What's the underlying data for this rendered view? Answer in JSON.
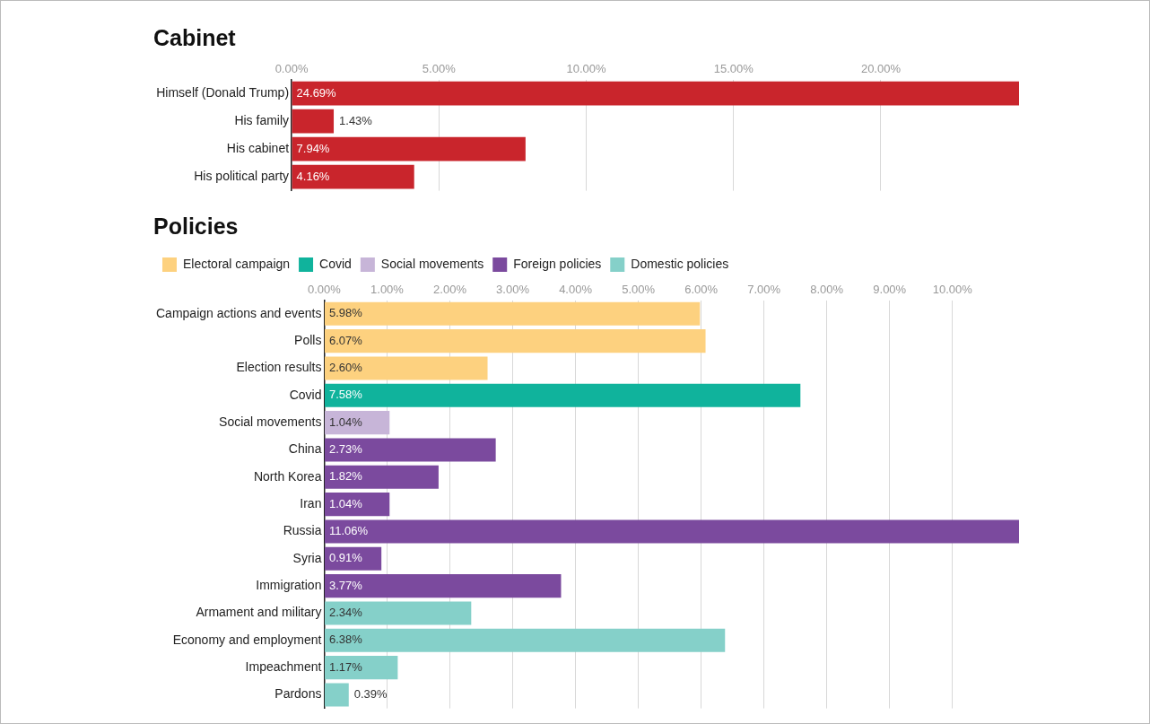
{
  "chart_data": [
    {
      "type": "bar",
      "orientation": "horizontal",
      "title": "Cabinet",
      "categories": [
        "Himself (Donald Trump)",
        "His family",
        "His cabinet",
        "His political party"
      ],
      "values": [
        24.69,
        1.43,
        7.94,
        4.16
      ],
      "color": "#c9252c",
      "value_labels": [
        "24.69%",
        "1.43%",
        "7.94%",
        "4.16%"
      ],
      "xlim": [
        0,
        24.69
      ],
      "xticks": [
        {
          "value": 0,
          "label": "0.00%"
        },
        {
          "value": 5,
          "label": "5.00%"
        },
        {
          "value": 10,
          "label": "10.00%"
        },
        {
          "value": 15,
          "label": "15.00%"
        },
        {
          "value": 20,
          "label": "20.00%"
        }
      ],
      "grid": "x",
      "legend": false
    },
    {
      "type": "bar",
      "orientation": "horizontal",
      "title": "Policies",
      "stacked": true,
      "legend": "top left",
      "grid": "x",
      "categories": [
        "Campaign actions and events",
        "Polls",
        "Election results",
        "Covid",
        "Social movements",
        "China",
        "North Korea",
        "Iran",
        "Russia",
        "Syria",
        "Immigration",
        "Armament and military",
        "Economy and employment",
        "Impeachment",
        "Pardons"
      ],
      "series": [
        {
          "name": "Electoral campaign",
          "color": "#fdd17f",
          "values": [
            5.98,
            6.07,
            2.6,
            null,
            null,
            null,
            null,
            null,
            null,
            null,
            null,
            null,
            null,
            null,
            null
          ],
          "value_labels": [
            "5.98%",
            "6.07%",
            "2.60%",
            null,
            null,
            null,
            null,
            null,
            null,
            null,
            null,
            null,
            null,
            null,
            null
          ]
        },
        {
          "name": "Covid",
          "color": "#10b39c",
          "values": [
            null,
            null,
            null,
            7.58,
            null,
            null,
            null,
            null,
            null,
            null,
            null,
            null,
            null,
            null,
            null
          ],
          "value_labels": [
            null,
            null,
            null,
            "7.58%",
            null,
            null,
            null,
            null,
            null,
            null,
            null,
            null,
            null,
            null,
            null
          ]
        },
        {
          "name": "Social movements",
          "color": "#c7b5d8",
          "values": [
            null,
            null,
            null,
            null,
            1.04,
            null,
            null,
            null,
            null,
            null,
            null,
            null,
            null,
            null,
            null
          ],
          "value_labels": [
            null,
            null,
            null,
            null,
            "1.04%",
            null,
            null,
            null,
            null,
            null,
            null,
            null,
            null,
            null,
            null
          ]
        },
        {
          "name": "Foreign policies",
          "color": "#7b4a9e",
          "values": [
            null,
            null,
            null,
            null,
            null,
            2.73,
            1.82,
            1.04,
            11.06,
            0.91,
            3.77,
            null,
            null,
            null,
            null
          ],
          "value_labels": [
            null,
            null,
            null,
            null,
            null,
            "2.73%",
            "1.82%",
            "1.04%",
            "11.06%",
            "0.91%",
            "3.77%",
            null,
            null,
            null,
            null
          ]
        },
        {
          "name": "Domestic policies",
          "color": "#85d0c9",
          "values": [
            null,
            null,
            null,
            null,
            null,
            null,
            null,
            null,
            null,
            null,
            null,
            2.34,
            6.38,
            1.17,
            0.39
          ],
          "value_labels": [
            null,
            null,
            null,
            null,
            null,
            null,
            null,
            null,
            null,
            null,
            null,
            "2.34%",
            "6.38%",
            "1.17%",
            "0.39%"
          ]
        }
      ],
      "xlim": [
        0,
        11.06
      ],
      "xticks": [
        {
          "value": 0,
          "label": "0.00%"
        },
        {
          "value": 1,
          "label": "1.00%"
        },
        {
          "value": 2,
          "label": "2.00%"
        },
        {
          "value": 3,
          "label": "3.00%"
        },
        {
          "value": 4,
          "label": "4.00%"
        },
        {
          "value": 5,
          "label": "5.00%"
        },
        {
          "value": 6,
          "label": "6.00%"
        },
        {
          "value": 7,
          "label": "7.00%"
        },
        {
          "value": 8,
          "label": "8.00%"
        },
        {
          "value": 9,
          "label": "9.00%"
        },
        {
          "value": 10,
          "label": "10.00%"
        }
      ]
    }
  ]
}
